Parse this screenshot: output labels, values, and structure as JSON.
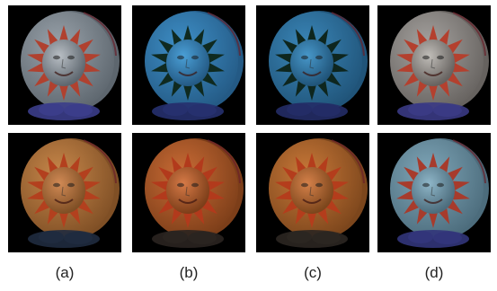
{
  "figure": {
    "labels": [
      "(a)",
      "(b)",
      "(c)",
      "(d)"
    ],
    "panels": [
      {
        "id": "a-top",
        "row": "top",
        "column": "a",
        "disc": "#9aa3ab",
        "disc_shade": "#5d666e",
        "rays": "#b0412f",
        "face": "#b8bec4",
        "base": "#3b3d8a"
      },
      {
        "id": "b-top",
        "row": "top",
        "column": "b",
        "disc": "#3e8fc7",
        "disc_shade": "#245a85",
        "rays": "#0f2a20",
        "face": "#4a9fd6",
        "base": "#26306e"
      },
      {
        "id": "c-top",
        "row": "top",
        "column": "c",
        "disc": "#3a86b8",
        "disc_shade": "#205479",
        "rays": "#0e261e",
        "face": "#4797c9",
        "base": "#232c66"
      },
      {
        "id": "d-top",
        "row": "top",
        "column": "d",
        "disc": "#a6a3a0",
        "disc_shade": "#66625f",
        "rays": "#b4402e",
        "face": "#c0bdb8",
        "base": "#3a3a84"
      },
      {
        "id": "a-bottom",
        "row": "bottom",
        "column": "a",
        "disc": "#c7874a",
        "disc_shade": "#7f4f25",
        "rays": "#b3401e",
        "face": "#d18a55",
        "base": "#1f2b3f"
      },
      {
        "id": "b-bottom",
        "row": "bottom",
        "column": "b",
        "disc": "#c96b35",
        "disc_shade": "#7c3e19",
        "rays": "#b23a1c",
        "face": "#d67a47",
        "base": "#2a2420"
      },
      {
        "id": "c-bottom",
        "row": "bottom",
        "column": "c",
        "disc": "#c87838",
        "disc_shade": "#7c461c",
        "rays": "#b43d1c",
        "face": "#d5814a",
        "base": "#2b2621"
      },
      {
        "id": "d-bottom",
        "row": "bottom",
        "column": "d",
        "disc": "#7fa6b8",
        "disc_shade": "#4c6c7c",
        "rays": "#a73b2c",
        "face": "#8fb6c8",
        "base": "#32357a"
      }
    ]
  }
}
